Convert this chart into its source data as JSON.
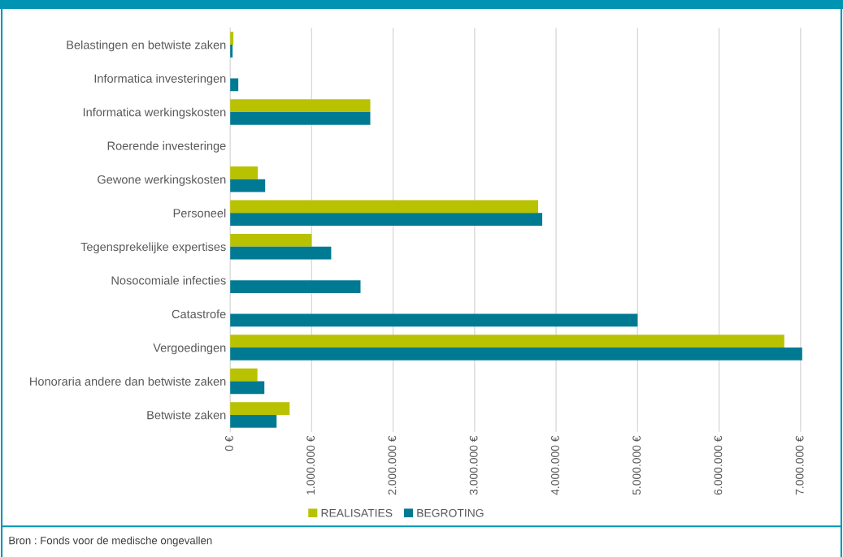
{
  "chart_data": {
    "type": "bar",
    "orientation": "horizontal",
    "categories": [
      "Belastingen en betwiste zaken",
      "Informatica investeringen",
      "Informatica werkingskosten",
      "Roerende investeringe",
      "Gewone werkingskosten",
      "Personeel",
      "Tegensprekelijke expertises",
      "Nosocomiale infecties",
      "Catastrofe",
      "Vergoedingen",
      "Honoraria andere dan betwiste zaken",
      "Betwiste zaken"
    ],
    "series": [
      {
        "name": "REALISATIES",
        "color": "#b8c200",
        "values": [
          40000,
          null,
          1720000,
          null,
          340000,
          3780000,
          1000000,
          null,
          null,
          6800000,
          335000,
          730000
        ]
      },
      {
        "name": "BEGROTING",
        "color": "#007a93",
        "values": [
          30000,
          100000,
          1720000,
          null,
          430000,
          3830000,
          1240000,
          1600000,
          5000000,
          7020000,
          420000,
          570000
        ]
      }
    ],
    "xlim": [
      0,
      7500000
    ],
    "xticks": [
      {
        "value": 0,
        "label": "0 €"
      },
      {
        "value": 1000000,
        "label": "1.000.000 €"
      },
      {
        "value": 2000000,
        "label": "2.000.000 €"
      },
      {
        "value": 3000000,
        "label": "3.000.000 €"
      },
      {
        "value": 4000000,
        "label": "4.000.000 €"
      },
      {
        "value": 5000000,
        "label": "5.000.000 €"
      },
      {
        "value": 6000000,
        "label": "6.000.000 €"
      },
      {
        "value": 7000000,
        "label": "7.000.000 €"
      }
    ],
    "grid": "x",
    "legend": "bottom",
    "annotations": [
      "Bron : Fonds voor de medische ongevallen"
    ]
  }
}
